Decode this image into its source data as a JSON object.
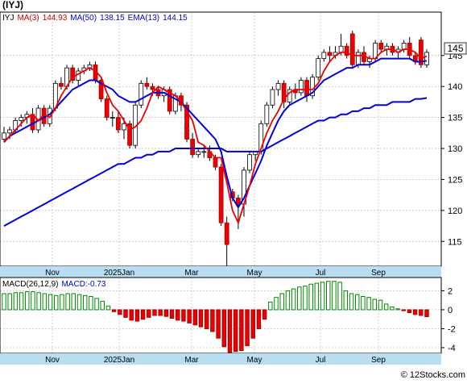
{
  "title": "(IYJ)",
  "footer": "© 12Stocks.com",
  "price_chart": {
    "legend": [
      {
        "text": "IYJ",
        "color": "#000000"
      },
      {
        "text": "MA(3)",
        "color": "#cc0000"
      },
      {
        "text": "144.93",
        "color": "#cc0000"
      },
      {
        "text": "MA(50)",
        "color": "#0000cc"
      },
      {
        "text": "138.15",
        "color": "#0000cc"
      },
      {
        "text": "EMA(13)",
        "color": "#0000cc"
      },
      {
        "text": "144.15",
        "color": "#0000cc"
      }
    ],
    "last_price_label": "145"
  },
  "macd_chart": {
    "legend": [
      {
        "text": "MACD(26,12,9)",
        "color": "#000000"
      },
      {
        "text": "MACD:-0.73",
        "color": "#0000cc"
      }
    ]
  },
  "chart_data": [
    {
      "type": "candlestick",
      "title": "(IYJ)",
      "x_ticks": [
        "Nov",
        "2025Jan",
        "Mar",
        "May",
        "Jul",
        "Sep"
      ],
      "y_ticks": [
        115,
        120,
        125,
        130,
        135,
        140,
        145
      ],
      "ylim": [
        111,
        152
      ],
      "grid": true,
      "candle_colors": {
        "up": "#ffffff",
        "down": "#ee0000"
      },
      "candles": [
        [
          131.5,
          133.5,
          131.0,
          132.5
        ],
        [
          132.5,
          133.5,
          131.5,
          133.0
        ],
        [
          133.0,
          135.0,
          132.5,
          134.5
        ],
        [
          134.5,
          135.5,
          133.5,
          135.0
        ],
        [
          135.0,
          136.0,
          134.0,
          135.5
        ],
        [
          135.5,
          136.5,
          132.5,
          133.0
        ],
        [
          133.0,
          137.0,
          132.5,
          136.5
        ],
        [
          136.5,
          137.0,
          133.5,
          134.0
        ],
        [
          134.0,
          137.0,
          133.5,
          136.5
        ],
        [
          136.5,
          141.0,
          136.0,
          140.5
        ],
        [
          140.5,
          141.5,
          139.5,
          140.0
        ],
        [
          140.0,
          143.5,
          139.5,
          143.0
        ],
        [
          143.0,
          143.5,
          140.5,
          141.0
        ],
        [
          141.0,
          143.0,
          140.0,
          142.5
        ],
        [
          142.5,
          143.5,
          142.0,
          143.0
        ],
        [
          143.0,
          144.0,
          142.5,
          143.5
        ],
        [
          143.5,
          144.0,
          140.5,
          141.0
        ],
        [
          141.0,
          141.5,
          137.5,
          138.0
        ],
        [
          138.0,
          138.5,
          134.5,
          135.0
        ],
        [
          135.0,
          136.0,
          133.5,
          135.0
        ],
        [
          135.0,
          136.0,
          132.5,
          133.0
        ],
        [
          133.0,
          135.0,
          131.5,
          134.0
        ],
        [
          134.0,
          134.5,
          130.0,
          130.5
        ],
        [
          130.5,
          137.5,
          130.0,
          137.0
        ],
        [
          137.0,
          141.0,
          136.5,
          140.5
        ],
        [
          140.5,
          141.5,
          139.5,
          140.0
        ],
        [
          140.0,
          140.5,
          138.5,
          139.5
        ],
        [
          139.5,
          140.0,
          138.0,
          138.5
        ],
        [
          138.5,
          140.0,
          137.5,
          139.5
        ],
        [
          139.5,
          140.0,
          135.5,
          136.0
        ],
        [
          136.0,
          139.0,
          135.5,
          138.5
        ],
        [
          138.5,
          139.0,
          136.0,
          137.0
        ],
        [
          137.0,
          137.5,
          131.0,
          131.5
        ],
        [
          131.5,
          132.5,
          128.5,
          129.0
        ],
        [
          129.0,
          130.0,
          128.5,
          129.5
        ],
        [
          129.5,
          130.5,
          128.5,
          129.5
        ],
        [
          129.5,
          130.5,
          128.0,
          128.5
        ],
        [
          128.5,
          129.0,
          126.5,
          127.0
        ],
        [
          127.0,
          127.5,
          117.5,
          118.0
        ],
        [
          118.0,
          119.0,
          111.0,
          114.5
        ],
        [
          123.0,
          123.5,
          121.5,
          122.0
        ],
        [
          122.0,
          122.5,
          117.0,
          121.0
        ],
        [
          121.0,
          127.0,
          119.0,
          126.5
        ],
        [
          126.5,
          129.5,
          126.0,
          129.0
        ],
        [
          129.0,
          129.5,
          128.0,
          129.5
        ],
        [
          129.5,
          134.5,
          129.0,
          134.0
        ],
        [
          134.0,
          137.5,
          133.5,
          137.0
        ],
        [
          137.0,
          140.0,
          136.5,
          139.5
        ],
        [
          139.5,
          141.0,
          138.5,
          140.5
        ],
        [
          140.5,
          141.0,
          136.5,
          137.5
        ],
        [
          137.5,
          140.0,
          137.0,
          139.5
        ],
        [
          139.5,
          140.5,
          138.0,
          139.0
        ],
        [
          139.0,
          141.5,
          138.5,
          141.0
        ],
        [
          141.0,
          141.5,
          137.5,
          138.5
        ],
        [
          138.5,
          142.0,
          138.0,
          141.5
        ],
        [
          141.5,
          145.0,
          141.0,
          144.5
        ],
        [
          144.5,
          146.0,
          144.0,
          145.5
        ],
        [
          145.5,
          146.5,
          144.0,
          145.0
        ],
        [
          145.0,
          146.5,
          144.5,
          145.5
        ],
        [
          145.5,
          148.5,
          145.0,
          146.5
        ],
        [
          146.5,
          147.0,
          144.5,
          145.0
        ],
        [
          148.5,
          149.0,
          143.0,
          143.5
        ],
        [
          143.5,
          146.0,
          143.0,
          145.5
        ],
        [
          145.5,
          146.5,
          143.5,
          144.0
        ],
        [
          144.0,
          145.0,
          143.0,
          144.5
        ],
        [
          144.5,
          147.5,
          144.0,
          147.0
        ],
        [
          147.0,
          147.5,
          145.5,
          146.0
        ],
        [
          146.0,
          147.0,
          145.0,
          146.5
        ],
        [
          146.5,
          147.0,
          145.0,
          145.5
        ],
        [
          145.5,
          146.5,
          144.5,
          146.0
        ],
        [
          146.0,
          147.5,
          145.5,
          147.0
        ],
        [
          147.0,
          148.0,
          144.5,
          145.0
        ],
        [
          145.0,
          145.5,
          143.5,
          144.0
        ],
        [
          147.5,
          148.0,
          143.0,
          143.5
        ],
        [
          143.5,
          146.0,
          143.0,
          145.5
        ]
      ],
      "ma_short": [
        131.0,
        132.0,
        133.0,
        134.0,
        135.0,
        135.5,
        134.5,
        135.5,
        135.0,
        136.5,
        138.5,
        140.0,
        141.5,
        142.0,
        142.5,
        143.0,
        142.5,
        141.5,
        139.0,
        137.0,
        136.0,
        134.5,
        133.0,
        133.5,
        134.5,
        136.5,
        139.0,
        140.0,
        139.5,
        139.0,
        138.5,
        137.5,
        136.0,
        134.5,
        131.0,
        130.5,
        129.5,
        128.5,
        128.5,
        124.5,
        120.0,
        118.0,
        121.0,
        124.0,
        127.5,
        130.0,
        132.5,
        134.5,
        136.0,
        138.0,
        139.0,
        139.5,
        139.5,
        139.5,
        139.5,
        140.5,
        142.5,
        144.0,
        145.0,
        145.5,
        145.5,
        145.0,
        145.0,
        145.0,
        144.5,
        144.5,
        145.5,
        146.0,
        146.0,
        145.5,
        146.0,
        146.0,
        145.5,
        144.5,
        144.9
      ],
      "ema_13": [
        131.0,
        132.0,
        132.5,
        133.0,
        133.5,
        134.0,
        134.5,
        135.0,
        135.5,
        136.5,
        137.5,
        138.5,
        139.5,
        140.0,
        140.5,
        141.0,
        141.0,
        140.5,
        140.0,
        139.5,
        138.5,
        138.0,
        137.5,
        137.5,
        138.0,
        138.5,
        139.0,
        139.0,
        139.0,
        138.5,
        138.0,
        137.5,
        136.5,
        135.5,
        134.5,
        133.5,
        132.5,
        131.5,
        129.5,
        125.5,
        122.0,
        120.5,
        122.0,
        124.0,
        126.0,
        128.0,
        130.5,
        132.5,
        134.5,
        136.0,
        137.0,
        137.5,
        138.0,
        138.5,
        139.0,
        140.0,
        141.0,
        141.5,
        142.0,
        142.5,
        143.0,
        143.0,
        143.5,
        143.5,
        143.5,
        144.0,
        144.5,
        144.5,
        144.5,
        144.5,
        144.5,
        144.5,
        144.0,
        144.0,
        144.15
      ],
      "ma_50": [
        117.5,
        118.0,
        118.5,
        119.0,
        119.5,
        120.0,
        120.5,
        121.0,
        121.5,
        122.0,
        122.5,
        123.0,
        123.5,
        124.0,
        124.5,
        125.0,
        125.5,
        126.0,
        126.5,
        127.0,
        127.5,
        127.5,
        128.0,
        128.5,
        128.5,
        129.0,
        129.0,
        129.5,
        129.5,
        129.5,
        130.0,
        130.0,
        130.0,
        130.0,
        130.0,
        130.0,
        130.0,
        130.0,
        130.0,
        129.5,
        129.5,
        129.5,
        129.5,
        129.5,
        129.5,
        129.5,
        130.0,
        130.5,
        131.0,
        131.5,
        132.0,
        132.5,
        133.0,
        133.5,
        134.0,
        134.5,
        134.5,
        135.0,
        135.0,
        135.5,
        135.5,
        136.0,
        136.0,
        136.5,
        136.5,
        137.0,
        137.0,
        137.0,
        137.5,
        137.5,
        137.5,
        137.5,
        138.0,
        138.0,
        138.15
      ]
    },
    {
      "type": "bar",
      "title": "MACD(26,12,9)",
      "y_ticks": [
        -4,
        -2,
        0,
        2
      ],
      "ylim": [
        -4.6,
        3.4
      ],
      "x_ticks": [
        "Nov",
        "2025Jan",
        "Mar",
        "May",
        "Jul",
        "Sep"
      ],
      "bar_colors": {
        "positive": "#008800",
        "negative": "#ee0000"
      },
      "values": [
        1.7,
        1.7,
        1.8,
        1.8,
        1.9,
        1.9,
        1.8,
        1.7,
        1.6,
        1.5,
        1.6,
        1.7,
        1.7,
        1.6,
        1.5,
        1.4,
        1.2,
        0.9,
        0.4,
        -0.2,
        -0.5,
        -0.8,
        -1.1,
        -1.2,
        -1.0,
        -0.8,
        -0.6,
        -0.6,
        -0.7,
        -0.9,
        -1.1,
        -1.2,
        -1.4,
        -1.6,
        -1.8,
        -2.0,
        -2.3,
        -3.0,
        -3.9,
        -4.5,
        -4.4,
        -4.3,
        -3.8,
        -3.0,
        -2.0,
        -1.0,
        0.8,
        1.3,
        1.7,
        2.0,
        2.2,
        2.4,
        2.5,
        2.7,
        2.8,
        2.9,
        3.0,
        3.0,
        2.9,
        2.0,
        1.7,
        1.6,
        1.4,
        1.3,
        1.1,
        1.0,
        0.6,
        0.3,
        0.1,
        -0.1,
        -0.3,
        -0.5,
        -0.6,
        -0.73
      ]
    }
  ]
}
